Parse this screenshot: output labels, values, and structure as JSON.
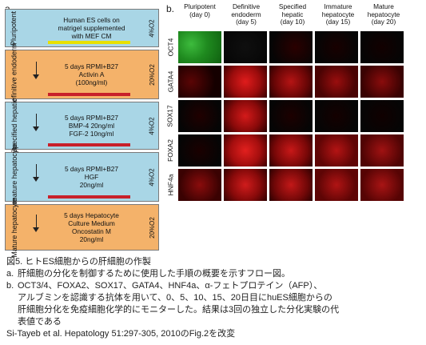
{
  "panel_a": {
    "letter": "a.",
    "stages": [
      {
        "label": "Pluripotent",
        "text": [
          "Human ES cells on",
          "matrigel supplemented",
          "with MEF CM"
        ],
        "o2": "4%O2",
        "color": "blue"
      },
      {
        "label": "Definitive endoderm",
        "text": [
          "5 days RPMI+B27",
          "Activin A",
          "(100ng/ml)"
        ],
        "o2": "20%O2",
        "color": "orange"
      },
      {
        "label": "Specified hepatic",
        "text": [
          "5 days RPMI+B27",
          "BMP-4 20ng/ml",
          "FGF-2 10ng/ml"
        ],
        "o2": "4%O2",
        "color": "blue"
      },
      {
        "label": "Immature hepatocyte",
        "text": [
          "5 days RPMI+B27",
          "HGF",
          "20ng/ml"
        ],
        "o2": "4%O2",
        "color": "blue"
      },
      {
        "label": "Mature hepatocyte",
        "text": [
          "5 days Hepatocyte",
          "Culture Medium",
          "Oncostatin M",
          "20ng/ml"
        ],
        "o2": "20%O2",
        "color": "orange"
      }
    ]
  },
  "panel_b": {
    "letter": "b.",
    "columns": [
      [
        "Pluripotent",
        "(day 0)"
      ],
      [
        "Definitive",
        "endoderm",
        "(day 5)"
      ],
      [
        "Specified",
        "hepatic",
        "(day 10)"
      ],
      [
        "Immature",
        "hepatocyte",
        "(day 15)"
      ],
      [
        "Mature",
        "hepatocyte",
        "(day 20)"
      ]
    ],
    "rows": [
      "OCT4",
      "GATA4",
      "SOX17",
      "FOXA2",
      "HNF4a"
    ],
    "stain_colors": {
      "green": "#2ea82e",
      "red": "#d81c1c",
      "black": "#050505"
    }
  },
  "caption": {
    "title": "図5. ヒトES細胞からの肝細胞の作製",
    "item_a_label": "a.",
    "item_a": "肝細胞の分化を制御するために使用した手順の概要を示すフロー図。",
    "item_b_label": "b.",
    "item_b_lines": [
      "OCT3/4、FOXA2、SOX17、GATA4、HNF4a、α-フェトプロテイン（AFP）、",
      "アルブミンを認識する抗体を用いて、0、5、10、15、20日目にhuES細胞からの",
      "肝細胞分化を免疫細胞化学的にモニターした。結果は3回の独立した分化実験の代",
      "表値である"
    ],
    "source": "Si-Tayeb et al. Hepatology 51:297-305, 2010のFig.2を改変"
  }
}
